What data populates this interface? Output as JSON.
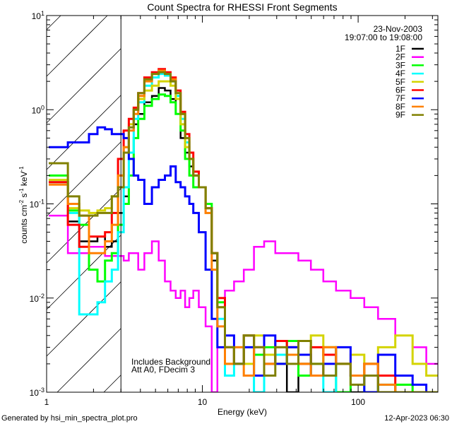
{
  "chart_data": {
    "type": "line",
    "title": "Count Spectra for RHESSI Front Segments",
    "xlabel": "Energy (keV)",
    "ylabel_parts": [
      "counts cm",
      "-2",
      " s",
      "-1",
      " keV",
      "-1"
    ],
    "xscale": "log",
    "yscale": "log",
    "xlim": [
      1,
      325
    ],
    "ylim": [
      0.001,
      10
    ],
    "x_ticks": [
      {
        "value": 1,
        "label": "1"
      },
      {
        "value": 10,
        "label": "10"
      },
      {
        "value": 100,
        "label": "100"
      }
    ],
    "y_ticks": [
      {
        "value": 0.001,
        "base": "10",
        "exp": "-3"
      },
      {
        "value": 0.01,
        "base": "10",
        "exp": "-2"
      },
      {
        "value": 0.1,
        "base": "10",
        "exp": "-1"
      },
      {
        "value": 1,
        "base": "10",
        "exp": "0"
      },
      {
        "value": 10,
        "base": "10",
        "exp": "1"
      }
    ],
    "shaded_region": [
      1,
      3
    ],
    "date": "23-Nov-2003",
    "time_range": "19:07:00 to 19:08:00",
    "annotations": [
      "Includes Background",
      "Att A0, FDecim 3"
    ],
    "legend_position": "top-right",
    "x": [
      1.1,
      1.25,
      1.5,
      1.75,
      2,
      2.25,
      2.5,
      2.75,
      3,
      3.25,
      3.5,
      3.75,
      4,
      4.5,
      5,
      5.5,
      6,
      6.5,
      7,
      7.5,
      8,
      8.5,
      9,
      10,
      11,
      12,
      13,
      15,
      17,
      20,
      23,
      27,
      32,
      38,
      45,
      55,
      65,
      80,
      100,
      120,
      150,
      200,
      250,
      300
    ],
    "series": [
      {
        "name": "1F",
        "color": "#000000",
        "values": [
          0.17,
          0.17,
          0.065,
          0.04,
          0.04,
          0.045,
          0.035,
          0.04,
          0.08,
          0.12,
          0.3,
          0.7,
          0.9,
          1.2,
          1.4,
          1.7,
          1.6,
          1.3,
          0.9,
          0.5,
          0.35,
          0.25,
          0.2,
          0.15,
          0.08,
          0.025,
          0.008,
          0.002,
          0.003,
          0.0015,
          0.004,
          0.002,
          0.003,
          0.001,
          0.002,
          0.003,
          0.0015,
          0.002,
          0.001,
          0.002,
          0.0015,
          0.0012,
          0.001,
          0.001
        ]
      },
      {
        "name": "2F",
        "color": "#ff00ff",
        "values": [
          0.075,
          0.075,
          0.03,
          0.03,
          0.035,
          0.035,
          0.028,
          0.028,
          0.028,
          0.025,
          0.03,
          0.03,
          0.02,
          0.03,
          0.04,
          0.025,
          0.015,
          0.012,
          0.01,
          0.012,
          0.008,
          0.01,
          0.012,
          0.008,
          0.005,
          0.001,
          0.01,
          0.012,
          0.015,
          0.02,
          0.035,
          0.04,
          0.03,
          0.03,
          0.025,
          0.02,
          0.015,
          0.012,
          0.01,
          0.008,
          0.006,
          0.004,
          0.003,
          0.002
        ]
      },
      {
        "name": "3F",
        "color": "#00ff00",
        "values": [
          0.2,
          0.2,
          0.085,
          0.06,
          0.02,
          0.015,
          0.025,
          0.03,
          0.06,
          0.1,
          0.2,
          0.5,
          0.8,
          1.1,
          1.3,
          1.45,
          1.4,
          1.2,
          0.9,
          0.6,
          0.3,
          0.2,
          0.15,
          0.15,
          0.1,
          0.03,
          0.009,
          0.003,
          0.002,
          0.004,
          0.0025,
          0.003,
          0.002,
          0.0035,
          0.0015,
          0.002,
          0.003,
          0.001,
          0.0015,
          0.002,
          0.001,
          0.0012,
          0.001,
          0.001
        ]
      },
      {
        "name": "4F",
        "color": "#00ffff",
        "values": [
          0.17,
          0.17,
          0.08,
          0.0067,
          0.0067,
          0.009,
          0.015,
          0.02,
          0.05,
          0.15,
          0.35,
          0.8,
          1.2,
          1.8,
          2.2,
          2.4,
          2.3,
          2.0,
          1.4,
          0.8,
          0.45,
          0.3,
          0.2,
          0.15,
          0.09,
          0.03,
          0.006,
          0.0015,
          0.002,
          0.003,
          0.001,
          0.002,
          0.0025,
          0.003,
          0.002,
          0.0015,
          0.001,
          0.002,
          0.0015,
          0.001,
          0.0012,
          0.001,
          0.001,
          0.001
        ]
      },
      {
        "name": "5F",
        "color": "#d4d400",
        "values": [
          0.18,
          0.18,
          0.09,
          0.085,
          0.08,
          0.085,
          0.09,
          0.12,
          0.2,
          0.4,
          0.7,
          1.0,
          1.3,
          1.6,
          1.8,
          2.0,
          2.0,
          1.8,
          1.3,
          0.7,
          0.4,
          0.3,
          0.22,
          0.15,
          0.09,
          0.03,
          0.008,
          0.002,
          0.003,
          0.002,
          0.004,
          0.0025,
          0.002,
          0.003,
          0.002,
          0.004,
          0.003,
          0.002,
          0.0025,
          0.002,
          0.003,
          0.004,
          0.002,
          0.0015
        ]
      },
      {
        "name": "6F",
        "color": "#ff0000",
        "values": [
          0.17,
          0.17,
          0.06,
          0.035,
          0.045,
          0.045,
          0.05,
          0.08,
          0.3,
          0.6,
          0.8,
          1.05,
          1.5,
          2.2,
          2.5,
          2.7,
          2.5,
          2.2,
          1.6,
          0.95,
          0.55,
          0.35,
          0.22,
          0.15,
          0.09,
          0.03,
          0.01,
          0.003,
          0.002,
          0.004,
          0.003,
          0.002,
          0.0035,
          0.003,
          0.002,
          0.003,
          0.0025,
          0.002,
          0.0015,
          0.002,
          0.0015,
          0.001,
          0.001,
          0.001
        ]
      },
      {
        "name": "7F",
        "color": "#0000ff",
        "values": [
          0.4,
          0.4,
          0.45,
          0.45,
          0.55,
          0.65,
          0.62,
          0.55,
          0.55,
          0.5,
          0.3,
          0.2,
          0.18,
          0.1,
          0.15,
          0.18,
          0.2,
          0.25,
          0.17,
          0.15,
          0.12,
          0.1,
          0.08,
          0.05,
          0.02,
          0.006,
          0.003,
          0.004,
          0.002,
          0.003,
          0.0015,
          0.004,
          0.002,
          0.003,
          0.0025,
          0.0015,
          0.002,
          0.003,
          0.0015,
          0.001,
          0.0025,
          0.0015,
          0.0012,
          0.001
        ]
      },
      {
        "name": "8F",
        "color": "#ff8000",
        "values": [
          0.16,
          0.16,
          0.1,
          0.075,
          0.03,
          0.03,
          0.04,
          0.06,
          0.2,
          0.4,
          0.6,
          0.9,
          1.4,
          2.0,
          2.4,
          2.6,
          2.4,
          2.1,
          1.5,
          0.9,
          0.5,
          0.3,
          0.2,
          0.15,
          0.08,
          0.02,
          0.005,
          0.002,
          0.003,
          0.0015,
          0.003,
          0.002,
          0.003,
          0.0025,
          0.002,
          0.0015,
          0.003,
          0.002,
          0.0015,
          0.002,
          0.0012,
          0.001,
          0.001,
          0.001
        ]
      },
      {
        "name": "9F",
        "color": "#808000",
        "values": [
          0.27,
          0.27,
          0.12,
          0.075,
          0.075,
          0.08,
          0.08,
          0.12,
          0.15,
          0.35,
          0.65,
          1.0,
          1.5,
          2.1,
          2.4,
          2.5,
          2.4,
          2.0,
          1.5,
          0.9,
          0.5,
          0.3,
          0.2,
          0.15,
          0.09,
          0.03,
          0.008,
          0.003,
          0.002,
          0.004,
          0.003,
          0.0015,
          0.003,
          0.002,
          0.0035,
          0.002,
          0.0015,
          0.002,
          0.0012,
          0.0015,
          0.001,
          0.001,
          0.001,
          0.001
        ]
      }
    ]
  },
  "footer": {
    "generated_by": "Generated by hsi_min_spectra_plot.pro",
    "timestamp": "12-Apr-2023 06:30"
  }
}
